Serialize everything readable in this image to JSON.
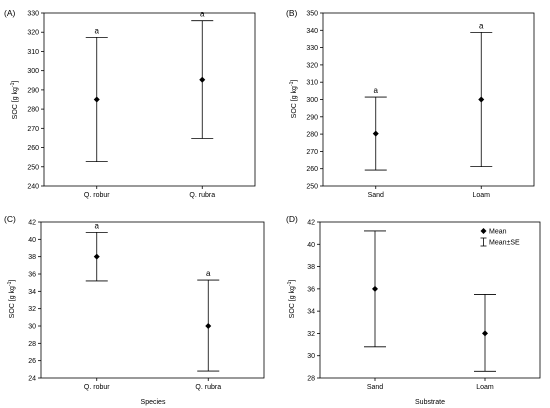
{
  "chart_data": [
    {
      "type": "scatter",
      "panel_label": "(A)",
      "ylabel_main": "SOC [g kg",
      "ylabel_sup": "-1",
      "ylabel_end": "]",
      "xlabel": "",
      "categories": [
        "Q. robur",
        "Q. rubra"
      ],
      "ylim": [
        240,
        330
      ],
      "yticks": [
        240,
        250,
        260,
        270,
        280,
        290,
        300,
        310,
        320,
        330
      ],
      "series": [
        {
          "values": [
            285,
            295.3
          ],
          "lower": [
            252.7,
            264.7
          ],
          "upper": [
            317.3,
            326.0
          ],
          "letters": [
            "a",
            "a"
          ]
        }
      ]
    },
    {
      "type": "scatter",
      "panel_label": "(B)",
      "ylabel_main": "SOC [g kg",
      "ylabel_sup": "-1",
      "ylabel_end": "]",
      "xlabel": "",
      "categories": [
        "Sand",
        "Loam"
      ],
      "ylim": [
        250,
        350
      ],
      "yticks": [
        250,
        260,
        270,
        280,
        290,
        300,
        310,
        320,
        330,
        340,
        350
      ],
      "series": [
        {
          "values": [
            280.3,
            300
          ],
          "lower": [
            259.2,
            261.2
          ],
          "upper": [
            301.4,
            338.8
          ],
          "letters": [
            "a",
            "a"
          ]
        }
      ]
    },
    {
      "type": "scatter",
      "panel_label": "(C)",
      "ylabel_main": "SOC [g kg",
      "ylabel_sup": "-1",
      "ylabel_end": "]",
      "xlabel": "Species",
      "categories": [
        "Q. robur",
        "Q. rubra"
      ],
      "ylim": [
        24,
        42
      ],
      "yticks": [
        24,
        26,
        28,
        30,
        32,
        34,
        36,
        38,
        40,
        42
      ],
      "series": [
        {
          "values": [
            38,
            30
          ],
          "lower": [
            35.2,
            24.8
          ],
          "upper": [
            40.8,
            35.3
          ],
          "letters": [
            "a",
            "a"
          ]
        }
      ]
    },
    {
      "type": "scatter",
      "panel_label": "(D)",
      "ylabel_main": "SOC [g kg",
      "ylabel_sup": "-1",
      "ylabel_end": "]",
      "xlabel": "Substrate",
      "categories": [
        "Sand",
        "Loam"
      ],
      "ylim": [
        28,
        42
      ],
      "yticks": [
        28,
        30,
        32,
        34,
        36,
        38,
        40,
        42
      ],
      "series": [
        {
          "values": [
            36,
            32
          ],
          "lower": [
            30.8,
            28.6
          ],
          "upper": [
            41.2,
            35.5
          ],
          "letters": [
            "",
            ""
          ]
        }
      ],
      "legend": {
        "mean": "Mean",
        "se": "Mean±SE",
        "placement": "top-right"
      }
    }
  ]
}
